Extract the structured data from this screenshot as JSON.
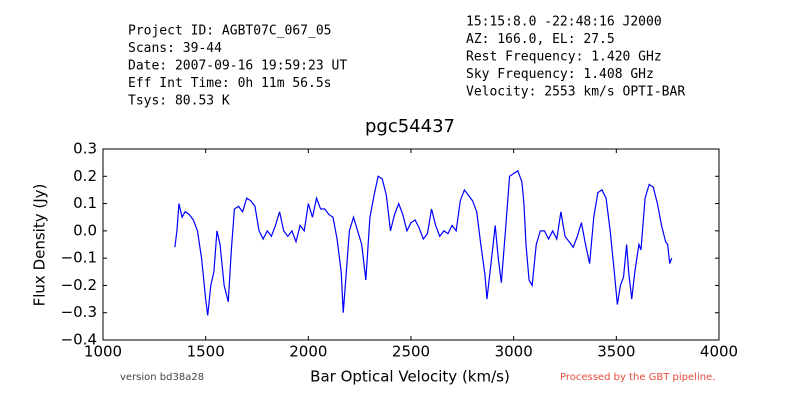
{
  "chart_data": {
    "type": "line",
    "title": "pgc54437",
    "header_left": [
      "Project ID: AGBT07C_067_05",
      "Scans: 39-44",
      "Date: 2007-09-16 19:59:23 UT",
      "Eff Int Time: 0h 11m 56.5s",
      "Tsys: 80.53 K"
    ],
    "header_right": [
      "15:15:8.0 -22:48:16 J2000",
      "AZ: 166.0, EL: 27.5",
      "Rest Frequency:   1.420 GHz",
      "Sky Frequency:    1.408 GHz",
      "Velocity: 2553 km/s OPTI-BAR"
    ],
    "footer_left": "version bd38a28",
    "footer_right": "Processed by the GBT pipeline.",
    "xlabel": "Bar Optical Velocity (km/s)",
    "ylabel": "Flux Density (Jy)",
    "xlim": [
      1000,
      4000
    ],
    "xticks": [
      1000,
      1500,
      2000,
      2500,
      3000,
      3500,
      4000
    ],
    "ylim": [
      -0.4,
      0.3
    ],
    "yticks": [
      {
        "value": -0.4,
        "label": "−0.4"
      },
      {
        "value": -0.3,
        "label": "−0.3"
      },
      {
        "value": -0.2,
        "label": "−0.2"
      },
      {
        "value": -0.1,
        "label": "−0.1"
      },
      {
        "value": 0,
        "label": "0.0"
      },
      0.1,
      0.2,
      0.3
    ],
    "x": [
      1350,
      1360,
      1370,
      1385,
      1400,
      1420,
      1440,
      1460,
      1480,
      1500,
      1510,
      1525,
      1540,
      1555,
      1570,
      1590,
      1610,
      1625,
      1640,
      1660,
      1680,
      1700,
      1720,
      1740,
      1760,
      1780,
      1800,
      1820,
      1840,
      1860,
      1880,
      1900,
      1920,
      1940,
      1960,
      1980,
      2000,
      2020,
      2040,
      2060,
      2080,
      2100,
      2120,
      2140,
      2160,
      2170,
      2185,
      2200,
      2220,
      2240,
      2260,
      2280,
      2300,
      2320,
      2340,
      2360,
      2380,
      2400,
      2420,
      2440,
      2460,
      2480,
      2500,
      2520,
      2540,
      2560,
      2580,
      2600,
      2620,
      2640,
      2660,
      2680,
      2700,
      2720,
      2740,
      2760,
      2780,
      2800,
      2820,
      2840,
      2860,
      2870,
      2885,
      2900,
      2910,
      2925,
      2940,
      2960,
      2980,
      3000,
      3020,
      3040,
      3050,
      3060,
      3075,
      3090,
      3110,
      3130,
      3150,
      3170,
      3190,
      3210,
      3230,
      3250,
      3270,
      3290,
      3310,
      3330,
      3350,
      3370,
      3390,
      3410,
      3430,
      3450,
      3470,
      3490,
      3505,
      3520,
      3535,
      3550,
      3560,
      3575,
      3590,
      3610,
      3620,
      3640,
      3660,
      3680,
      3700,
      3720,
      3740,
      3750,
      3760,
      3770
    ],
    "series": [
      {
        "color": "#0000ff",
        "values": [
          -0.06,
          0.0,
          0.1,
          0.05,
          0.07,
          0.06,
          0.04,
          0.0,
          -0.1,
          -0.25,
          -0.31,
          -0.2,
          -0.15,
          0.0,
          -0.05,
          -0.2,
          -0.26,
          -0.07,
          0.08,
          0.09,
          0.07,
          0.12,
          0.11,
          0.09,
          0.0,
          -0.03,
          0.0,
          -0.02,
          0.02,
          0.07,
          0.0,
          -0.02,
          0.0,
          -0.04,
          0.02,
          0.0,
          0.1,
          0.05,
          0.12,
          0.08,
          0.08,
          0.06,
          0.05,
          -0.03,
          -0.15,
          -0.3,
          -0.15,
          0.0,
          0.05,
          0.0,
          -0.05,
          -0.18,
          0.05,
          0.13,
          0.2,
          0.19,
          0.13,
          0.0,
          0.06,
          0.1,
          0.06,
          0.0,
          0.03,
          0.04,
          0.01,
          -0.03,
          -0.01,
          0.08,
          0.02,
          -0.02,
          0.0,
          -0.01,
          0.02,
          0.0,
          0.11,
          0.15,
          0.13,
          0.11,
          0.07,
          -0.05,
          -0.16,
          -0.25,
          -0.15,
          -0.05,
          0.02,
          -0.1,
          -0.19,
          0.0,
          0.2,
          0.21,
          0.22,
          0.18,
          0.1,
          -0.05,
          -0.18,
          -0.2,
          -0.05,
          0.0,
          0.0,
          -0.03,
          0.0,
          -0.03,
          0.07,
          -0.02,
          -0.04,
          -0.06,
          -0.02,
          0.03,
          -0.05,
          -0.12,
          0.05,
          0.14,
          0.15,
          0.12,
          0.0,
          -0.15,
          -0.27,
          -0.2,
          -0.17,
          -0.05,
          -0.15,
          -0.25,
          -0.15,
          -0.05,
          -0.07,
          0.12,
          0.17,
          0.16,
          0.1,
          0.02,
          -0.04,
          -0.05,
          -0.12,
          -0.1
        ]
      }
    ]
  }
}
